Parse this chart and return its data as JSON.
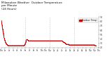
{
  "title": "Milwaukee Weather  Outdoor Temperature\nper Minute\n(24 Hours)",
  "title_fontsize": 3.0,
  "bg_color": "#ffffff",
  "line_color": "#cc0000",
  "grid_color": "#999999",
  "ylim": [
    20,
    90
  ],
  "yticks": [
    20,
    30,
    40,
    50,
    60,
    70,
    80,
    90
  ],
  "ytick_labels": [
    "20",
    "30",
    "40",
    "50",
    "60",
    "70",
    "80",
    "90"
  ],
  "temp_values": [
    82,
    81,
    80,
    79,
    78,
    78,
    77,
    76,
    75,
    74,
    73,
    72,
    71,
    70,
    69,
    68,
    67,
    66,
    65,
    64,
    63,
    62,
    61,
    60,
    59,
    58,
    57,
    56,
    55,
    54,
    53,
    52,
    51,
    50,
    49,
    48,
    48,
    47,
    46,
    45,
    44,
    43,
    43,
    42,
    41,
    41,
    40,
    40,
    39,
    39,
    38,
    38,
    37,
    37,
    36,
    36,
    35,
    35,
    34,
    34,
    33,
    33,
    33,
    32,
    32,
    32,
    31,
    31,
    31,
    30,
    30,
    30,
    30,
    29,
    29,
    29,
    29,
    29,
    28,
    28,
    28,
    28,
    28,
    28,
    27,
    27,
    27,
    27,
    27,
    27,
    27,
    26,
    26,
    26,
    26,
    26,
    26,
    26,
    26,
    26,
    26,
    25,
    25,
    25,
    25,
    25,
    25,
    25,
    25,
    25,
    25,
    25,
    25,
    25,
    25,
    25,
    25,
    25,
    25,
    25,
    25,
    25,
    25,
    25,
    25,
    25,
    25,
    25,
    25,
    25,
    25,
    25,
    25,
    25,
    25,
    25,
    25,
    25,
    25,
    25,
    25,
    25,
    25,
    25,
    25,
    25,
    25,
    25,
    25,
    25,
    25,
    25,
    25,
    25,
    25,
    25,
    25,
    25,
    25,
    25,
    25,
    25,
    25,
    25,
    25,
    25,
    25,
    25,
    25,
    25,
    25,
    25,
    25,
    25,
    25,
    25,
    25,
    25,
    25,
    25,
    25,
    25,
    25,
    25,
    25,
    25,
    25,
    25,
    25,
    25,
    25,
    25,
    25,
    25,
    25,
    25,
    25,
    25,
    25,
    25,
    25,
    25,
    25,
    25,
    25,
    25,
    25,
    25,
    25,
    25,
    25,
    25,
    25,
    25,
    25,
    25,
    25,
    25,
    25,
    25,
    25,
    25,
    25,
    25,
    25,
    25,
    25,
    25,
    25,
    25,
    25,
    25,
    25,
    25,
    25,
    25,
    25,
    25,
    25,
    25,
    25,
    25,
    25,
    25,
    25,
    25,
    25,
    25,
    25,
    25,
    25,
    25,
    25,
    25,
    25,
    25,
    25,
    25,
    25,
    25,
    25,
    25,
    25,
    25,
    25,
    25,
    25,
    25,
    25,
    25,
    25,
    25,
    25,
    25,
    25,
    25,
    25,
    25,
    25,
    25,
    25,
    25,
    25,
    25,
    25,
    25,
    25,
    25,
    25,
    25,
    25,
    25,
    25,
    25,
    25,
    25,
    25,
    25,
    25,
    25,
    25,
    25,
    25,
    25,
    25,
    25,
    25,
    25,
    25,
    25,
    25,
    25,
    25,
    25,
    25,
    25,
    25,
    25,
    25,
    25,
    25,
    25,
    25,
    25,
    25,
    25,
    25,
    25,
    25,
    25,
    25,
    25,
    25,
    25,
    25,
    25,
    25,
    25,
    25,
    25,
    26,
    26,
    26,
    26,
    26,
    27,
    27,
    27,
    27,
    28,
    28,
    28,
    29,
    29,
    30,
    30,
    31,
    31,
    32,
    32,
    33,
    33,
    34,
    35,
    35,
    36,
    36,
    37,
    37,
    38,
    38,
    38,
    39,
    39,
    39,
    39,
    39,
    39,
    39,
    39,
    39,
    39,
    39,
    39,
    39,
    39,
    39,
    38,
    38,
    38,
    38,
    38,
    37,
    37,
    37,
    37,
    37,
    36,
    36,
    36,
    36,
    36,
    36,
    36,
    36,
    36,
    36,
    36,
    36,
    36,
    36,
    36,
    36,
    36,
    36,
    36,
    36,
    36,
    36,
    36,
    36,
    36,
    36,
    36,
    36,
    36,
    36,
    36,
    36,
    36,
    36,
    36,
    36,
    36,
    36,
    36,
    36,
    36,
    36,
    36,
    36,
    36,
    36,
    36,
    36,
    36,
    36,
    36,
    36,
    36,
    36,
    36,
    36,
    36,
    36,
    36,
    36,
    36,
    36,
    36,
    36,
    36,
    36,
    36,
    36,
    36,
    36,
    36,
    36,
    36,
    36,
    36,
    36,
    36,
    36,
    36,
    36,
    36,
    36,
    36,
    36,
    36,
    36,
    36,
    36,
    36,
    36,
    36,
    36,
    36,
    36,
    36,
    36,
    36,
    36,
    36,
    36,
    36,
    36,
    36,
    36,
    36,
    36,
    36,
    36,
    36,
    36,
    36,
    36,
    36,
    36,
    36,
    36,
    36,
    36,
    36,
    36,
    36,
    36,
    36,
    36,
    36,
    36,
    36,
    36,
    36,
    36,
    36,
    36,
    36,
    36,
    36,
    36,
    36,
    36,
    36,
    36,
    36,
    36,
    36,
    36,
    36,
    36,
    36,
    36,
    36,
    36,
    36,
    36,
    36,
    36,
    36,
    36,
    36,
    36,
    36,
    36,
    36,
    36,
    36,
    36,
    36,
    36,
    36,
    36,
    36,
    36,
    36,
    36,
    36,
    36,
    36,
    36,
    36,
    36,
    36,
    36,
    36,
    36,
    36,
    36,
    36,
    36,
    36,
    36,
    36,
    36,
    36,
    36,
    36,
    36,
    36,
    36,
    36,
    36,
    36,
    36,
    36,
    36,
    36,
    36,
    36,
    36,
    36,
    36,
    36,
    36,
    36,
    36,
    36,
    36,
    36,
    36,
    36,
    36,
    36,
    36,
    36,
    36,
    36,
    36,
    36,
    36,
    36,
    36,
    36,
    36,
    36,
    36,
    36,
    36,
    36,
    36,
    36,
    36,
    36,
    36,
    36,
    36,
    36,
    36,
    36,
    36,
    36,
    36,
    36,
    36,
    36,
    36,
    36,
    36,
    36,
    36,
    36,
    36,
    36,
    36,
    36,
    36,
    36,
    36,
    36,
    36,
    36,
    36,
    36,
    36,
    36,
    36,
    36,
    36,
    36,
    36,
    36,
    36,
    36,
    36,
    36,
    36,
    36,
    36,
    36,
    36,
    36,
    36,
    36,
    36,
    36,
    36,
    36,
    36,
    36,
    36,
    36,
    36,
    36,
    36,
    36,
    36,
    36,
    36,
    36,
    36,
    36,
    36,
    36,
    36,
    36,
    36,
    36,
    36,
    36,
    36,
    36,
    36,
    36,
    36,
    36,
    36,
    36,
    36,
    36,
    36,
    36,
    36,
    36,
    36,
    36,
    36,
    36,
    36,
    36,
    36,
    36,
    36,
    36,
    36,
    36,
    36,
    36,
    36,
    36,
    36,
    36,
    36,
    36,
    36,
    36,
    36,
    36,
    36,
    36,
    36,
    36,
    36,
    36,
    36,
    36,
    36,
    36,
    36,
    36,
    36,
    36,
    36,
    36,
    36,
    36,
    36,
    36,
    36,
    36,
    36,
    36,
    36,
    36,
    36,
    36,
    36,
    36,
    36,
    36,
    36,
    36,
    36,
    36,
    36,
    36,
    36,
    36,
    36,
    36,
    36,
    36,
    36,
    36,
    36,
    36,
    36,
    36,
    36,
    36,
    36,
    36,
    36,
    36,
    36,
    36,
    36,
    36,
    36,
    36,
    36,
    36,
    36,
    36,
    36,
    36,
    36,
    36,
    36,
    36,
    36,
    36,
    36,
    36,
    36,
    36,
    36,
    36,
    36,
    36,
    36,
    36,
    36,
    36,
    36,
    36,
    36,
    36,
    36,
    36,
    36,
    36,
    36,
    36,
    36,
    36,
    36,
    36,
    36,
    36,
    36,
    36,
    36,
    36,
    36,
    36,
    36,
    36,
    36,
    36,
    36,
    36,
    36,
    36,
    36,
    36,
    36,
    36,
    36,
    36,
    36,
    36,
    36,
    36,
    36,
    36,
    36,
    36,
    36,
    36,
    36,
    36,
    36,
    36,
    36,
    36,
    36,
    36,
    36,
    36,
    36,
    36,
    36,
    36,
    36,
    36,
    36,
    36,
    35,
    35,
    35,
    35,
    35,
    35,
    35,
    35,
    34,
    34,
    34,
    34,
    34,
    34,
    33,
    33,
    33,
    33,
    33,
    33,
    33,
    33,
    33,
    33,
    33,
    33,
    33,
    32,
    32,
    32,
    32,
    32,
    32,
    32,
    32,
    32,
    31,
    31,
    31,
    31,
    31,
    31,
    31,
    30,
    30,
    30,
    30,
    30,
    29,
    29,
    29,
    29,
    29,
    29,
    29,
    28,
    28,
    28,
    28,
    28,
    28,
    28,
    28,
    28,
    28,
    28,
    28,
    28,
    28,
    28,
    28,
    28,
    28,
    28,
    28,
    28,
    28,
    28,
    28,
    28,
    28,
    28,
    28,
    28,
    28,
    28,
    28,
    28,
    28,
    28,
    28,
    28,
    28,
    28,
    28,
    28,
    28,
    28,
    28,
    28,
    27,
    27,
    27,
    27,
    27,
    27,
    27,
    27,
    27,
    27,
    27,
    27,
    27,
    27,
    27,
    27,
    27,
    27,
    27,
    27,
    27,
    27,
    27,
    27,
    27,
    27,
    27,
    27,
    27,
    27,
    27,
    27,
    27,
    27,
    27,
    27,
    27,
    27,
    27,
    27,
    27,
    27,
    27,
    27,
    27,
    27,
    27,
    27,
    27,
    27,
    27,
    27,
    27,
    27,
    27,
    27,
    27,
    27,
    27,
    27,
    27,
    27,
    27,
    27,
    27,
    27,
    27,
    27,
    27,
    27,
    27,
    27,
    27,
    27,
    27,
    27,
    27,
    27,
    27,
    27,
    27,
    27,
    27,
    27,
    27,
    27,
    27,
    27,
    27,
    27,
    27,
    27,
    27,
    27,
    27,
    27,
    27,
    27,
    27,
    27,
    27,
    27,
    27,
    27,
    27,
    27,
    27,
    27,
    27,
    27,
    27,
    27,
    27,
    27,
    27,
    27,
    27,
    27,
    27,
    27,
    27,
    27,
    27,
    27,
    27,
    27,
    27,
    27,
    27,
    27,
    27,
    27,
    27,
    27,
    27,
    27,
    27,
    27,
    27,
    27,
    27,
    27,
    27,
    27,
    27,
    27,
    27,
    27,
    27,
    27,
    27,
    27,
    27,
    27,
    27,
    27,
    27,
    27,
    27,
    27,
    27,
    27,
    27,
    27,
    27,
    27,
    27,
    27,
    27,
    27,
    27,
    27,
    27,
    27,
    27,
    27,
    27,
    27,
    27,
    27,
    27,
    27,
    27,
    27,
    27,
    27,
    27,
    27,
    27,
    27,
    27,
    27,
    27,
    27,
    27,
    27,
    27,
    27,
    27,
    27,
    27,
    27,
    27,
    27,
    27,
    27,
    27,
    27,
    27,
    27,
    27,
    27,
    27,
    27,
    27,
    27,
    27,
    27,
    27,
    27,
    27,
    27,
    27,
    27,
    27,
    27,
    27,
    27,
    27,
    27,
    27,
    27,
    27,
    27,
    27,
    27,
    27,
    27,
    27,
    27,
    27,
    27,
    27,
    27,
    27,
    27,
    27,
    27,
    27,
    27,
    27,
    27,
    27,
    27,
    27,
    27,
    27,
    27,
    27,
    27,
    27,
    27,
    27,
    27,
    27,
    27,
    27,
    27,
    27,
    27,
    27,
    27,
    27,
    27,
    27,
    27,
    27,
    27,
    27,
    27,
    27,
    27,
    27,
    27,
    27,
    27,
    27,
    27,
    27,
    27,
    27,
    27,
    27,
    27,
    27,
    27,
    27,
    27,
    27,
    27,
    27,
    27,
    27,
    27,
    27,
    27,
    27,
    27,
    27,
    27,
    27,
    27,
    27,
    27,
    27,
    27,
    27,
    27,
    27,
    27,
    27,
    27,
    27,
    27,
    27,
    27,
    27,
    27,
    27,
    27,
    27,
    27,
    27,
    27,
    27,
    27,
    27,
    27,
    27,
    27,
    27,
    27,
    27,
    27,
    27,
    27,
    27,
    27,
    27,
    27,
    27,
    27,
    27,
    27,
    27,
    27,
    27,
    27,
    27,
    27,
    27,
    27,
    27,
    27,
    27,
    27,
    27,
    27,
    27,
    27,
    27,
    27,
    27,
    27,
    27,
    27,
    27,
    27,
    27,
    27,
    26,
    26,
    26,
    26,
    25,
    25,
    25,
    25,
    25,
    25,
    25,
    25,
    25,
    25,
    25,
    25,
    25,
    25,
    25,
    25
  ],
  "vline_positions": [
    360,
    720,
    1080
  ],
  "legend_label": "Outdoor Temp",
  "legend_color": "#cc0000",
  "xtick_positions": [
    0,
    60,
    120,
    180,
    240,
    300,
    360,
    420,
    480,
    540,
    600,
    660,
    720,
    780,
    840,
    900,
    960,
    1020,
    1080,
    1140,
    1200,
    1260,
    1320,
    1380,
    1439
  ],
  "xtick_labels": [
    "12a",
    "1a",
    "2a",
    "3a",
    "4a",
    "5a",
    "6a",
    "7a",
    "8a",
    "9a",
    "10a",
    "11a",
    "12p",
    "1p",
    "2p",
    "3p",
    "4p",
    "5p",
    "6p",
    "7p",
    "8p",
    "9p",
    "10p",
    "11p",
    "12a"
  ],
  "marker_size": 0.6,
  "figwidth": 1.6,
  "figheight": 0.87,
  "dpi": 100
}
